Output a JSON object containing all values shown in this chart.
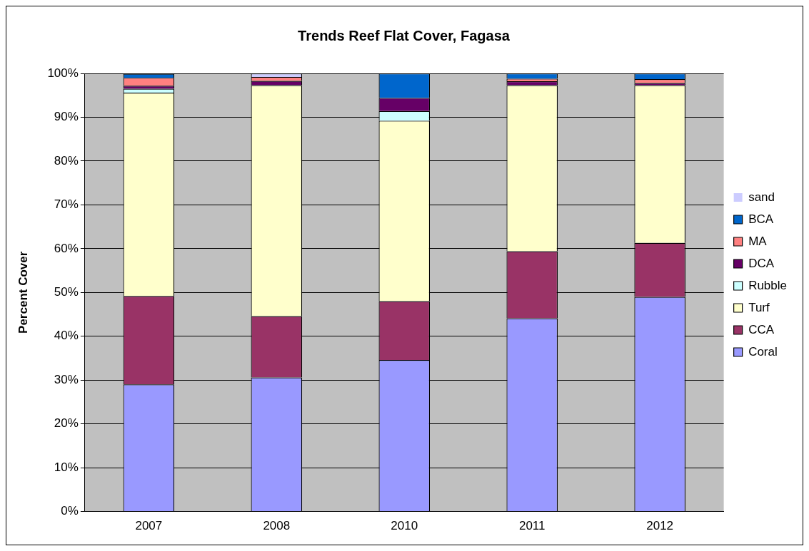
{
  "chart_data": {
    "type": "bar",
    "title": "Trends Reef Flat Cover, Fagasa",
    "ylabel": "Percent Cover",
    "stacked": true,
    "categories": [
      "2007",
      "2008",
      "2010",
      "2011",
      "2012"
    ],
    "series": [
      {
        "name": "Coral",
        "color": "#9999ff",
        "values": [
          29.0,
          30.6,
          34.6,
          44.1,
          49.0
        ]
      },
      {
        "name": "CCA",
        "color": "#993366",
        "values": [
          20.2,
          14.0,
          13.4,
          15.3,
          12.3
        ]
      },
      {
        "name": "Turf",
        "color": "#ffffcc",
        "values": [
          46.4,
          52.7,
          41.2,
          37.9,
          36.0
        ]
      },
      {
        "name": "Rubble",
        "color": "#ccffff",
        "values": [
          0.9,
          0,
          2.2,
          0,
          0
        ]
      },
      {
        "name": "DCA",
        "color": "#660066",
        "values": [
          0.7,
          1.0,
          3.0,
          0.9,
          0.5
        ]
      },
      {
        "name": "MA",
        "color": "#ff8080",
        "values": [
          1.8,
          0.9,
          0,
          0.6,
          0.9
        ]
      },
      {
        "name": "BCA",
        "color": "#0066cc",
        "values": [
          0.9,
          0,
          5.6,
          1.2,
          1.3
        ]
      },
      {
        "name": "sand",
        "color": "#ccccff",
        "values": [
          0,
          0.8,
          0,
          0,
          0
        ]
      }
    ],
    "ylim": [
      0,
      100
    ],
    "yticks": [
      {
        "value": 0,
        "label": "0%"
      },
      {
        "value": 10,
        "label": "10%"
      },
      {
        "value": 20,
        "label": "20%"
      },
      {
        "value": 30,
        "label": "30%"
      },
      {
        "value": 40,
        "label": "40%"
      },
      {
        "value": 50,
        "label": "50%"
      },
      {
        "value": 60,
        "label": "60%"
      },
      {
        "value": 70,
        "label": "70%"
      },
      {
        "value": 80,
        "label": "80%"
      },
      {
        "value": 90,
        "label": "90%"
      },
      {
        "value": 100,
        "label": "100%"
      }
    ],
    "grid": "y",
    "legend": "right"
  }
}
